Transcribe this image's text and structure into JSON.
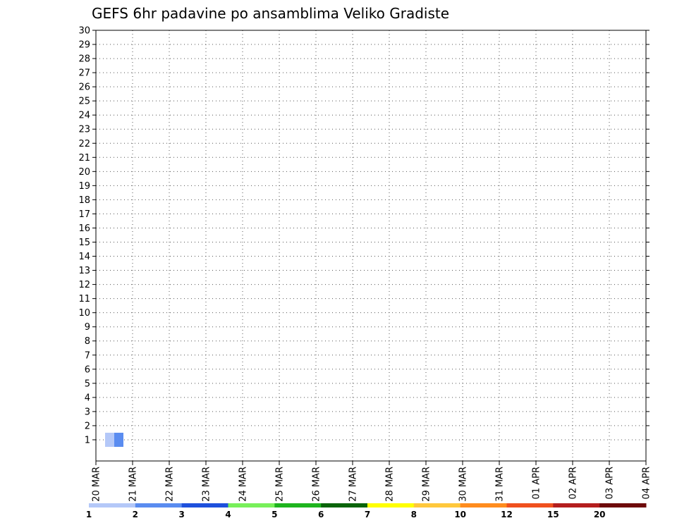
{
  "chart_data": {
    "type": "heatmap",
    "title": "GEFS 6hr padavine po ansamblima Veliko Gradiste",
    "x_tick_labels": [
      "20 MAR",
      "21 MAR",
      "22 MAR",
      "23 MAR",
      "24 MAR",
      "25 MAR",
      "26 MAR",
      "27 MAR",
      "28 MAR",
      "29 MAR",
      "30 MAR",
      "31 MAR",
      "01 APR",
      "02 APR",
      "03 APR",
      "04 APR"
    ],
    "y_tick_labels": [
      "1",
      "2",
      "3",
      "4",
      "5",
      "6",
      "7",
      "8",
      "9",
      "10",
      "11",
      "12",
      "13",
      "14",
      "15",
      "16",
      "17",
      "18",
      "19",
      "20",
      "21",
      "22",
      "23",
      "24",
      "25",
      "26",
      "27",
      "28",
      "29",
      "30"
    ],
    "y_range": [
      1,
      30
    ],
    "time_step_hours": 6,
    "grid": "dotted",
    "legend": {
      "placement": "bottom",
      "labels": [
        "1",
        "2",
        "3",
        "4",
        "5",
        "6",
        "7",
        "8",
        "10",
        "12",
        "15",
        "20"
      ],
      "colors": [
        "#b4c8f8",
        "#5a8cf0",
        "#1e50dc",
        "#78f05a",
        "#1eb41e",
        "#0a640a",
        "#ffff00",
        "#ffc83c",
        "#ff8c1e",
        "#f0501e",
        "#b41e1e",
        "#6e0a0a"
      ]
    },
    "cells": [
      {
        "date": "20 MAR",
        "hour": 6,
        "member": 1,
        "level": 1
      },
      {
        "date": "20 MAR",
        "hour": 12,
        "member": 1,
        "level": 2
      }
    ]
  }
}
